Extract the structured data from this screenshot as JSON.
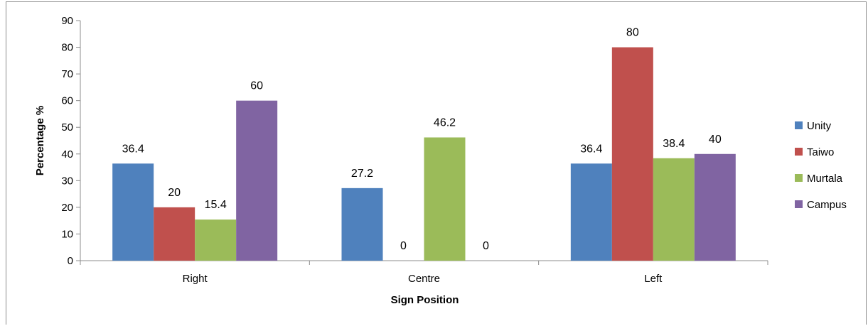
{
  "chart_data": {
    "type": "bar",
    "categories": [
      "Right",
      "Centre",
      "Left"
    ],
    "series": [
      {
        "name": "Unity",
        "values": [
          36.4,
          27.2,
          36.4
        ],
        "color": "#4f81bd"
      },
      {
        "name": "Taiwo",
        "values": [
          20,
          0,
          80
        ],
        "color": "#c0504d"
      },
      {
        "name": "Murtala",
        "values": [
          15.4,
          46.2,
          38.4
        ],
        "color": "#9bbb59"
      },
      {
        "name": "Campus",
        "values": [
          60,
          0,
          40
        ],
        "color": "#8064a2"
      }
    ],
    "title": "",
    "xlabel": "Sign Position",
    "ylabel": "Percentage %",
    "ylim": [
      0,
      90
    ],
    "yticks": [
      0,
      10,
      20,
      30,
      40,
      50,
      60,
      70,
      80,
      90
    ],
    "grid": false,
    "legend_position": "right"
  }
}
